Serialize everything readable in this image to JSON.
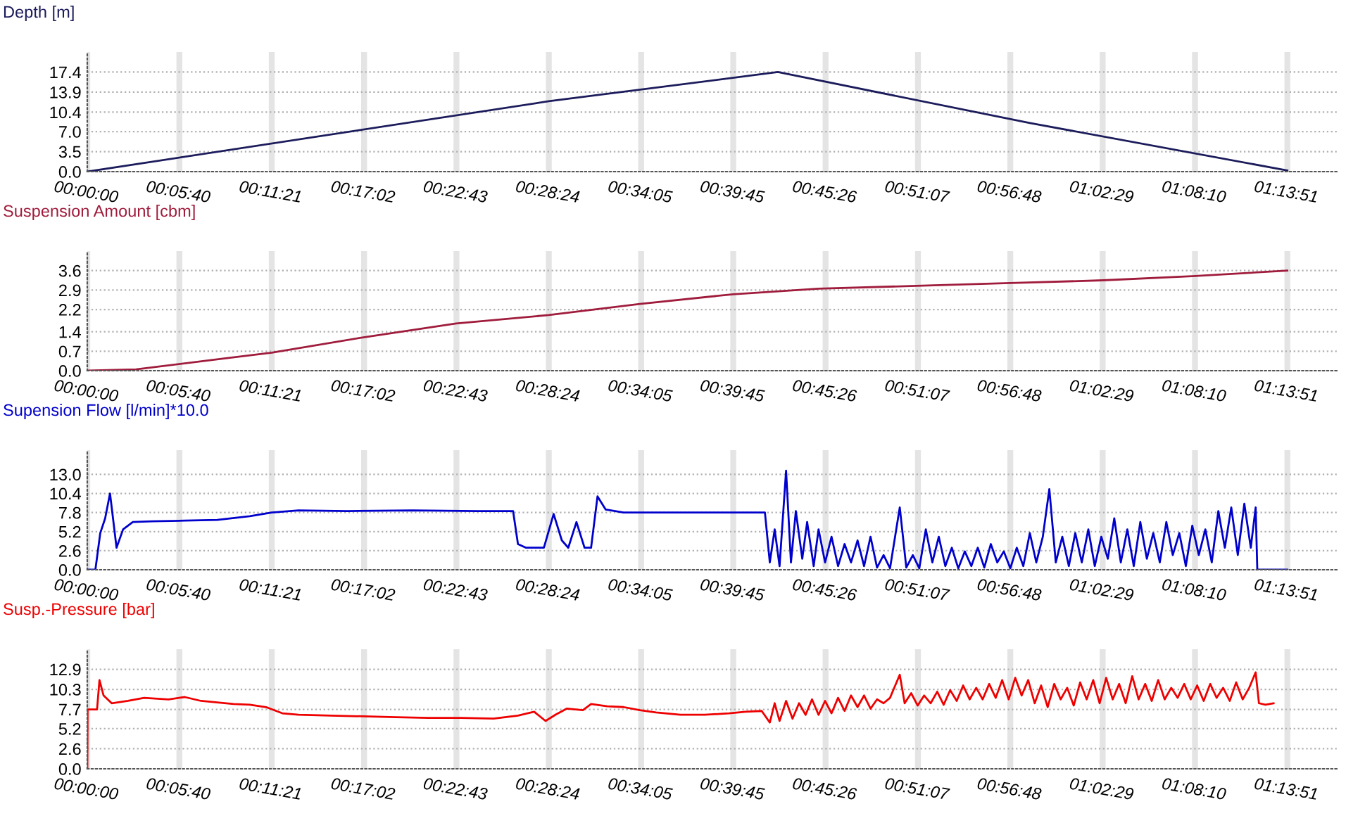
{
  "chart_data": [
    {
      "type": "line",
      "title": "Depth [m]",
      "grid": true,
      "marker": "none",
      "line_style": "solid",
      "series": [
        {
          "color": "#1c1c5c",
          "x": [
            0,
            0.4733,
            0.7083,
            0.9667,
            1.2308
          ],
          "values": [
            0,
            12.3,
            17.4,
            8.5,
            0.2
          ]
        }
      ],
      "xlim": [
        0,
        1.2823
      ],
      "ylim": [
        0,
        20.9
      ],
      "yticks": [
        {
          "value": 0,
          "label": "0.0"
        },
        3.5,
        {
          "value": 7,
          "label": "7.0"
        },
        10.4,
        13.9,
        17.4
      ],
      "xticks": [
        {
          "value": 0,
          "label": "00:00:00"
        },
        {
          "value": 0.094444,
          "label": "00:05:40"
        },
        {
          "value": 0.189167,
          "label": "00:11:21"
        },
        {
          "value": 0.283889,
          "label": "00:17:02"
        },
        {
          "value": 0.378611,
          "label": "00:22:43"
        },
        {
          "value": 0.473333,
          "label": "00:28:24"
        },
        {
          "value": 0.568056,
          "label": "00:34:05"
        },
        {
          "value": 0.6625,
          "label": "00:39:45"
        },
        {
          "value": 0.757222,
          "label": "00:45:26"
        },
        {
          "value": 0.851944,
          "label": "00:51:07"
        },
        {
          "value": 0.946667,
          "label": "00:56:48"
        },
        {
          "value": 1.041389,
          "label": "01:02:29"
        },
        {
          "value": 1.136111,
          "label": "01:08:10"
        },
        {
          "value": 1.230833,
          "label": "01:13:51"
        }
      ]
    },
    {
      "type": "line",
      "title": "Suspension Amount [cbm]",
      "grid": true,
      "marker": "none",
      "line_style": "solid",
      "series": [
        {
          "color": "#a01c3c",
          "x": [
            0,
            0.05,
            0.1892,
            0.2833,
            0.3783,
            0.4733,
            0.5667,
            0.6625,
            0.75,
            0.85,
            0.9467,
            1.0417,
            1.1333,
            1.2308
          ],
          "values": [
            0,
            0.05,
            0.65,
            1.2,
            1.7,
            2.0,
            2.4,
            2.75,
            2.95,
            3.05,
            3.15,
            3.25,
            3.4,
            3.6
          ]
        }
      ],
      "xlim": [
        0,
        1.2823
      ],
      "ylim": [
        0,
        4.3
      ],
      "yticks": [
        {
          "value": 0,
          "label": "0.0"
        },
        0.7,
        1.4,
        2.2,
        2.9,
        3.6
      ],
      "xticks": [
        {
          "value": 0,
          "label": "00:00:00"
        },
        {
          "value": 0.094444,
          "label": "00:05:40"
        },
        {
          "value": 0.189167,
          "label": "00:11:21"
        },
        {
          "value": 0.283889,
          "label": "00:17:02"
        },
        {
          "value": 0.378611,
          "label": "00:22:43"
        },
        {
          "value": 0.473333,
          "label": "00:28:24"
        },
        {
          "value": 0.568056,
          "label": "00:34:05"
        },
        {
          "value": 0.6625,
          "label": "00:39:45"
        },
        {
          "value": 0.757222,
          "label": "00:45:26"
        },
        {
          "value": 0.851944,
          "label": "00:51:07"
        },
        {
          "value": 0.946667,
          "label": "00:56:48"
        },
        {
          "value": 1.041389,
          "label": "01:02:29"
        },
        {
          "value": 1.136111,
          "label": "01:08:10"
        },
        {
          "value": 1.230833,
          "label": "01:13:51"
        }
      ]
    },
    {
      "type": "line",
      "title": "Supension Flow [l/min]*10.0",
      "grid": true,
      "marker": "none",
      "line_style": "solid",
      "series": [
        {
          "color": "#0000cc",
          "x": [
            0,
            0.0083,
            0.0133,
            0.0183,
            0.0233,
            0.03,
            0.0367,
            0.0467,
            0.0667,
            0.1,
            0.1333,
            0.1667,
            0.1892,
            0.2167,
            0.2667,
            0.3333,
            0.4,
            0.4367,
            0.4417,
            0.45,
            0.4683,
            0.4783,
            0.4867,
            0.4933,
            0.5017,
            0.51,
            0.5167,
            0.5233,
            0.5317,
            0.55,
            0.6333,
            0.695,
            0.7,
            0.705,
            0.71,
            0.7167,
            0.7217,
            0.7267,
            0.7333,
            0.7383,
            0.745,
            0.75,
            0.7567,
            0.7633,
            0.77,
            0.7767,
            0.7833,
            0.79,
            0.7967,
            0.8033,
            0.81,
            0.8167,
            0.8233,
            0.8333,
            0.84,
            0.8467,
            0.8533,
            0.86,
            0.8667,
            0.8733,
            0.88,
            0.8867,
            0.8933,
            0.9,
            0.9067,
            0.9133,
            0.92,
            0.9267,
            0.9333,
            0.94,
            0.9467,
            0.9533,
            0.96,
            0.9667,
            0.9733,
            0.98,
            0.9867,
            0.9933,
            1.0,
            1.0067,
            1.0133,
            1.02,
            1.0267,
            1.0333,
            1.04,
            1.0467,
            1.0533,
            1.06,
            1.0667,
            1.0733,
            1.08,
            1.0867,
            1.0933,
            1.1,
            1.1067,
            1.1133,
            1.12,
            1.1267,
            1.1333,
            1.14,
            1.1467,
            1.1533,
            1.16,
            1.1667,
            1.1733,
            1.18,
            1.1867,
            1.1933,
            1.1983,
            1.2,
            1.2308
          ],
          "values": [
            0,
            0,
            5.0,
            7.0,
            10.4,
            3.0,
            5.5,
            6.5,
            6.6,
            6.7,
            6.8,
            7.3,
            7.8,
            8.1,
            8.0,
            8.1,
            8.0,
            8.0,
            3.5,
            3.0,
            3.0,
            7.6,
            4.0,
            3.0,
            6.5,
            3.0,
            3.0,
            10.0,
            8.2,
            7.8,
            7.8,
            7.8,
            1.0,
            5.5,
            0.5,
            13.5,
            1.0,
            8.0,
            1.5,
            6.5,
            0.5,
            5.5,
            1.0,
            4.5,
            0.5,
            3.5,
            1.0,
            4.0,
            0.5,
            4.5,
            0.3,
            2.0,
            0.2,
            8.5,
            0.3,
            2.0,
            0.2,
            5.5,
            1.0,
            4.5,
            0.5,
            3.0,
            0.2,
            2.5,
            0.5,
            3.0,
            0.3,
            3.5,
            1.0,
            2.5,
            0.2,
            3.0,
            0.5,
            5.0,
            1.0,
            4.5,
            11.0,
            1.0,
            4.5,
            0.5,
            5.0,
            1.0,
            5.5,
            0.5,
            4.5,
            1.5,
            7.0,
            1.0,
            5.5,
            0.5,
            6.5,
            1.5,
            5.0,
            1.0,
            6.5,
            2.0,
            5.0,
            0.5,
            6.0,
            2.0,
            5.5,
            1.0,
            8.0,
            3.0,
            8.5,
            2.0,
            9.0,
            3.0,
            8.5,
            0.0,
            0.0
          ]
        }
      ],
      "xlim": [
        0,
        1.2823
      ],
      "ylim": [
        0,
        16.3
      ],
      "yticks": [
        {
          "value": 0,
          "label": "0.0"
        },
        2.6,
        5.2,
        7.8,
        10.4,
        {
          "value": 13,
          "label": "13.0"
        }
      ],
      "xticks": [
        {
          "value": 0,
          "label": "00:00:00"
        },
        {
          "value": 0.094444,
          "label": "00:05:40"
        },
        {
          "value": 0.189167,
          "label": "00:11:21"
        },
        {
          "value": 0.283889,
          "label": "00:17:02"
        },
        {
          "value": 0.378611,
          "label": "00:22:43"
        },
        {
          "value": 0.473333,
          "label": "00:28:24"
        },
        {
          "value": 0.568056,
          "label": "00:34:05"
        },
        {
          "value": 0.6625,
          "label": "00:39:45"
        },
        {
          "value": 0.757222,
          "label": "00:45:26"
        },
        {
          "value": 0.851944,
          "label": "00:51:07"
        },
        {
          "value": 0.946667,
          "label": "00:56:48"
        },
        {
          "value": 1.041389,
          "label": "01:02:29"
        },
        {
          "value": 1.136111,
          "label": "01:08:10"
        },
        {
          "value": 1.230833,
          "label": "01:13:51"
        }
      ]
    },
    {
      "type": "line",
      "title": "Susp.-Pressure [bar]",
      "grid": true,
      "marker": "none",
      "line_style": "solid",
      "series": [
        {
          "color": "#ee0000",
          "x": [
            0,
            0.0003,
            0.01,
            0.0125,
            0.0167,
            0.025,
            0.0417,
            0.0583,
            0.0833,
            0.1,
            0.1167,
            0.1333,
            0.15,
            0.1667,
            0.1833,
            0.2,
            0.2167,
            0.25,
            0.2833,
            0.3167,
            0.35,
            0.3833,
            0.4167,
            0.4417,
            0.4583,
            0.47,
            0.48,
            0.4917,
            0.5083,
            0.5167,
            0.5333,
            0.55,
            0.5667,
            0.5833,
            0.6083,
            0.6333,
            0.6583,
            0.675,
            0.6917,
            0.7,
            0.705,
            0.71,
            0.7167,
            0.7233,
            0.73,
            0.7367,
            0.7433,
            0.75,
            0.7567,
            0.7633,
            0.77,
            0.7767,
            0.7833,
            0.79,
            0.7967,
            0.8033,
            0.81,
            0.8167,
            0.8233,
            0.8333,
            0.8383,
            0.845,
            0.8517,
            0.8583,
            0.865,
            0.8717,
            0.8783,
            0.885,
            0.8917,
            0.8983,
            0.905,
            0.9117,
            0.9183,
            0.925,
            0.9317,
            0.9383,
            0.945,
            0.9517,
            0.9583,
            0.965,
            0.9717,
            0.9783,
            0.985,
            0.9917,
            0.9983,
            1.005,
            1.0117,
            1.0183,
            1.025,
            1.0317,
            1.0383,
            1.045,
            1.0517,
            1.0583,
            1.065,
            1.0717,
            1.0783,
            1.085,
            1.0917,
            1.0983,
            1.105,
            1.1117,
            1.1183,
            1.125,
            1.1317,
            1.1383,
            1.145,
            1.1517,
            1.1583,
            1.165,
            1.1717,
            1.1783,
            1.185,
            1.1917,
            1.1983,
            1.2017,
            1.2083,
            1.2167
          ],
          "values": [
            0,
            7.7,
            7.7,
            11.5,
            9.5,
            8.5,
            8.8,
            9.2,
            9.0,
            9.3,
            8.8,
            8.6,
            8.4,
            8.3,
            8.0,
            7.2,
            7.0,
            6.9,
            6.8,
            6.7,
            6.6,
            6.6,
            6.5,
            6.9,
            7.4,
            6.2,
            7.0,
            7.8,
            7.6,
            8.4,
            8.1,
            8.0,
            7.6,
            7.3,
            7.0,
            7.0,
            7.2,
            7.4,
            7.5,
            6.0,
            8.5,
            6.2,
            8.8,
            6.5,
            8.5,
            7.0,
            9.0,
            7.0,
            8.8,
            7.2,
            9.2,
            7.5,
            9.5,
            8.0,
            9.5,
            7.8,
            9.0,
            8.5,
            9.2,
            12.2,
            8.5,
            9.8,
            8.2,
            9.5,
            8.5,
            10.0,
            8.3,
            10.2,
            8.8,
            10.8,
            9.0,
            10.5,
            9.0,
            11.0,
            9.2,
            11.5,
            9.0,
            11.8,
            9.5,
            11.5,
            8.5,
            10.8,
            8.0,
            11.0,
            9.0,
            10.5,
            8.2,
            11.2,
            9.0,
            11.5,
            8.5,
            11.8,
            9.0,
            11.0,
            8.5,
            12.0,
            9.0,
            11.0,
            8.8,
            11.5,
            9.0,
            10.5,
            9.2,
            11.0,
            9.0,
            10.8,
            8.8,
            11.0,
            9.2,
            10.5,
            8.8,
            11.2,
            9.0,
            10.5,
            12.5,
            8.5,
            8.3,
            8.5
          ]
        }
      ],
      "xlim": [
        0,
        1.2823
      ],
      "ylim": [
        0,
        15.5
      ],
      "yticks": [
        {
          "value": 0,
          "label": "0.0"
        },
        2.6,
        5.2,
        7.7,
        10.3,
        12.9
      ],
      "xticks": [
        {
          "value": 0,
          "label": "00:00:00"
        },
        {
          "value": 0.094444,
          "label": "00:05:40"
        },
        {
          "value": 0.189167,
          "label": "00:11:21"
        },
        {
          "value": 0.283889,
          "label": "00:17:02"
        },
        {
          "value": 0.378611,
          "label": "00:22:43"
        },
        {
          "value": 0.473333,
          "label": "00:28:24"
        },
        {
          "value": 0.568056,
          "label": "00:34:05"
        },
        {
          "value": 0.6625,
          "label": "00:39:45"
        },
        {
          "value": 0.757222,
          "label": "00:45:26"
        },
        {
          "value": 0.851944,
          "label": "00:51:07"
        },
        {
          "value": 0.946667,
          "label": "00:56:48"
        },
        {
          "value": 1.041389,
          "label": "01:02:29"
        },
        {
          "value": 1.136111,
          "label": "01:08:10"
        },
        {
          "value": 1.230833,
          "label": "01:13:51"
        }
      ]
    }
  ]
}
